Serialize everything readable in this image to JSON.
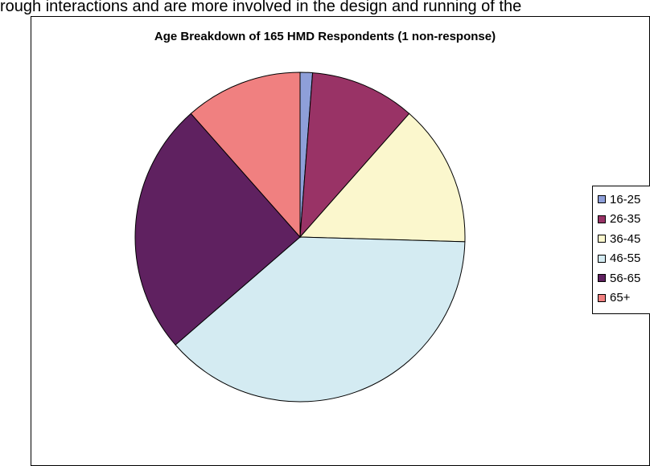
{
  "header_text": "rough interactions and are more involved in the design and running of the",
  "chart_data": {
    "type": "pie",
    "title": "Age Breakdown of 165 HMD Respondents (1 non-response)",
    "categories": [
      "16-25",
      "26-35",
      "36-45",
      "46-55",
      "56-65",
      "65+"
    ],
    "values": [
      2,
      17,
      23,
      63,
      41,
      19
    ],
    "colors": [
      "#9999ff",
      "#993366",
      "#ffffcc",
      "#ccffff",
      "#660066",
      "#ff8080"
    ],
    "legend_position": "right"
  }
}
